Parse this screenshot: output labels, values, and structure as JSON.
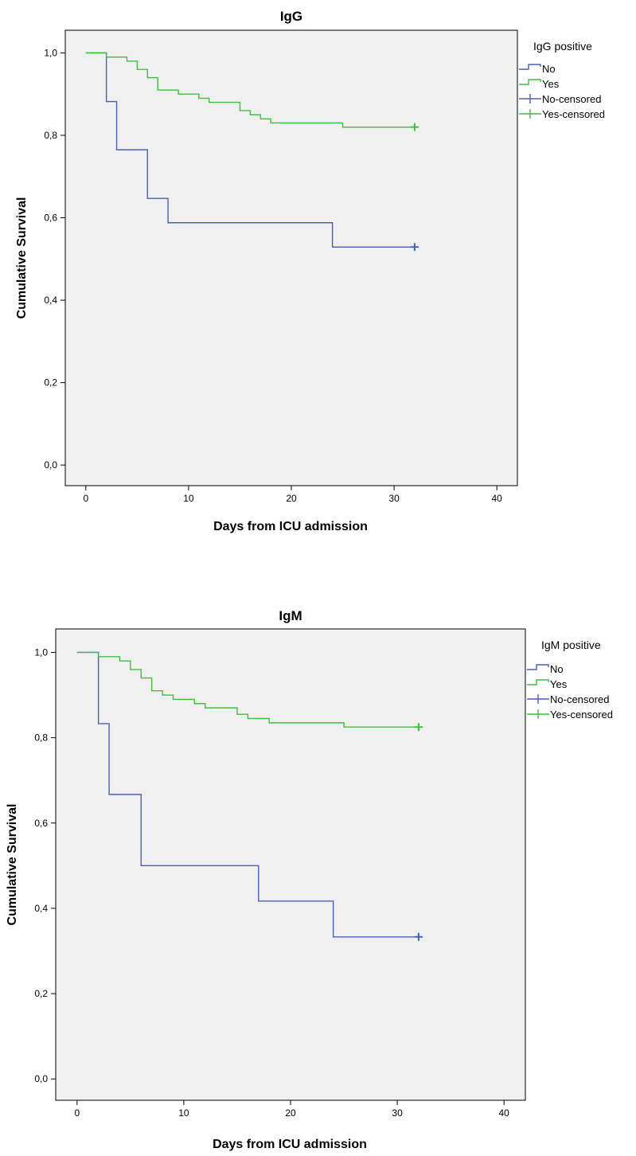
{
  "chart_data": [
    {
      "type": "line",
      "title": "IgG",
      "xlabel": "Days from ICU admission",
      "ylabel": "Cumulative Survival",
      "xlim": [
        -2,
        42
      ],
      "ylim": [
        -0.05,
        1.055
      ],
      "x_ticks": [
        0,
        10,
        20,
        30,
        40
      ],
      "x_tick_labels": [
        "0",
        "10",
        "20",
        "30",
        "40"
      ],
      "y_ticks": [
        0,
        0.2,
        0.4,
        0.6,
        0.8,
        1.0
      ],
      "y_tick_labels": [
        "0,0",
        "0,2",
        "0,4",
        "0,6",
        "0,8",
        "1,0"
      ],
      "step": true,
      "legend": {
        "title": "IgG positive",
        "position": "right",
        "entries": [
          "No",
          "Yes",
          "No-censored",
          "Yes-censored"
        ]
      },
      "series": [
        {
          "name": "No",
          "color": "#4a5fb8",
          "x": [
            0,
            2,
            3,
            6,
            8,
            24,
            32
          ],
          "y": [
            1.0,
            0.882,
            0.765,
            0.647,
            0.588,
            0.529,
            0.529
          ],
          "censored": [
            [
              32,
              0.529
            ]
          ]
        },
        {
          "name": "Yes",
          "color": "#3fbf3f",
          "x": [
            0,
            2,
            4,
            5,
            6,
            7,
            9,
            11,
            12,
            15,
            16,
            17,
            18,
            25,
            32
          ],
          "y": [
            1.0,
            0.99,
            0.98,
            0.96,
            0.94,
            0.91,
            0.9,
            0.89,
            0.88,
            0.86,
            0.85,
            0.84,
            0.83,
            0.82,
            0.82
          ],
          "censored": [
            [
              32,
              0.82
            ]
          ]
        }
      ]
    },
    {
      "type": "line",
      "title": "IgM",
      "xlabel": "Days from ICU admission",
      "ylabel": "Cumulative Survival",
      "xlim": [
        -2,
        42
      ],
      "ylim": [
        -0.05,
        1.055
      ],
      "x_ticks": [
        0,
        10,
        20,
        30,
        40
      ],
      "x_tick_labels": [
        "0",
        "10",
        "20",
        "30",
        "40"
      ],
      "y_ticks": [
        0,
        0.2,
        0.4,
        0.6,
        0.8,
        1.0
      ],
      "y_tick_labels": [
        "0,0",
        "0,2",
        "0,4",
        "0,6",
        "0,8",
        "1,0"
      ],
      "step": true,
      "legend": {
        "title": "IgM positive",
        "position": "right",
        "entries": [
          "No",
          "Yes",
          "No-censored",
          "Yes-censored"
        ]
      },
      "series": [
        {
          "name": "No",
          "color": "#4a5fb8",
          "x": [
            0,
            2,
            3,
            6,
            17,
            24,
            32
          ],
          "y": [
            1.0,
            0.833,
            0.667,
            0.5,
            0.417,
            0.333,
            0.333
          ],
          "censored": [
            [
              32,
              0.333
            ]
          ]
        },
        {
          "name": "Yes",
          "color": "#3fbf3f",
          "x": [
            0,
            2,
            4,
            5,
            6,
            7,
            8,
            9,
            11,
            12,
            15,
            16,
            18,
            25,
            32
          ],
          "y": [
            1.0,
            0.99,
            0.98,
            0.96,
            0.94,
            0.91,
            0.9,
            0.89,
            0.88,
            0.87,
            0.855,
            0.845,
            0.835,
            0.825,
            0.825
          ],
          "censored": [
            [
              32,
              0.825
            ]
          ]
        }
      ]
    }
  ]
}
